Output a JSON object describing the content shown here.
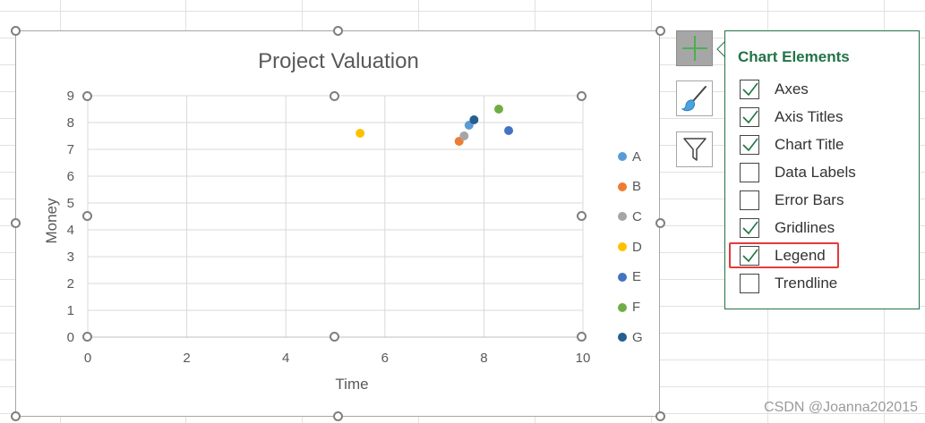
{
  "chart": {
    "title": "Project Valuation",
    "x_axis_title": "Time",
    "y_axis_title": "Money"
  },
  "chart_data": {
    "type": "scatter",
    "title": "Project Valuation",
    "xlabel": "Time",
    "ylabel": "Money",
    "xlim": [
      0,
      10
    ],
    "ylim": [
      0,
      9
    ],
    "x_ticks": [
      "0",
      "2",
      "4",
      "6",
      "8",
      "10"
    ],
    "y_ticks": [
      "0",
      "1",
      "2",
      "3",
      "4",
      "5",
      "6",
      "7",
      "8",
      "9"
    ],
    "grid": true,
    "legend_position": "right",
    "series": [
      {
        "name": "A",
        "color": "#5b9bd5",
        "points": [
          {
            "x": 7.7,
            "y": 7.9
          }
        ]
      },
      {
        "name": "B",
        "color": "#ed7d31",
        "points": [
          {
            "x": 7.5,
            "y": 7.3
          }
        ]
      },
      {
        "name": "C",
        "color": "#a5a5a5",
        "points": [
          {
            "x": 7.6,
            "y": 7.5
          }
        ]
      },
      {
        "name": "D",
        "color": "#ffc000",
        "points": [
          {
            "x": 5.5,
            "y": 7.6
          }
        ]
      },
      {
        "name": "E",
        "color": "#4472c4",
        "points": [
          {
            "x": 8.5,
            "y": 7.7
          }
        ]
      },
      {
        "name": "F",
        "color": "#70ad47",
        "points": [
          {
            "x": 8.3,
            "y": 8.5
          }
        ]
      },
      {
        "name": "G",
        "color": "#255e91",
        "points": [
          {
            "x": 7.8,
            "y": 8.1
          }
        ]
      }
    ]
  },
  "side_buttons": [
    {
      "icon": "plus-icon",
      "active": true
    },
    {
      "icon": "paintbrush-icon",
      "active": false
    },
    {
      "icon": "filter-icon",
      "active": false
    }
  ],
  "panel": {
    "title": "Chart Elements",
    "options": [
      {
        "label": "Axes",
        "checked": true
      },
      {
        "label": "Axis Titles",
        "checked": true
      },
      {
        "label": "Chart Title",
        "checked": true
      },
      {
        "label": "Data Labels",
        "checked": false
      },
      {
        "label": "Error Bars",
        "checked": false
      },
      {
        "label": "Gridlines",
        "checked": true
      },
      {
        "label": "Legend",
        "checked": true
      },
      {
        "label": "Trendline",
        "checked": false
      }
    ]
  },
  "colors": {
    "accent": "#217346",
    "highlight": "#e33b3b",
    "grid": "#d9d9d9",
    "text": "#595959"
  },
  "watermark": "CSDN @Joanna202015"
}
